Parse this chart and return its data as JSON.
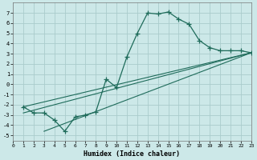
{
  "xlabel": "Humidex (Indice chaleur)",
  "background_color": "#cce8e8",
  "grid_color": "#aacccc",
  "line_color": "#1e6b5a",
  "xlim": [
    0,
    23
  ],
  "ylim": [
    -5.5,
    8.0
  ],
  "xticks": [
    0,
    1,
    2,
    3,
    4,
    5,
    6,
    7,
    8,
    9,
    10,
    11,
    12,
    13,
    14,
    15,
    16,
    17,
    18,
    19,
    20,
    21,
    22,
    23
  ],
  "yticks": [
    -5,
    -4,
    -3,
    -2,
    -1,
    0,
    1,
    2,
    3,
    4,
    5,
    6,
    7
  ],
  "curve1_x": [
    1,
    2,
    3,
    4,
    5,
    6,
    7,
    8,
    9,
    10,
    11,
    12,
    13,
    14,
    15,
    16,
    17,
    18,
    19,
    20,
    21,
    22,
    23
  ],
  "curve1_y": [
    -2.2,
    -2.8,
    -2.8,
    -3.5,
    -4.6,
    -3.2,
    -3.0,
    -2.7,
    0.5,
    -0.3,
    2.7,
    5.0,
    7.0,
    6.9,
    7.1,
    6.4,
    5.9,
    4.3,
    3.6,
    3.3,
    3.3,
    3.3,
    3.1
  ],
  "line2_x": [
    1,
    23
  ],
  "line2_y": [
    -2.2,
    3.1
  ],
  "line3_x": [
    3,
    23
  ],
  "line3_y": [
    -4.6,
    3.1
  ],
  "line4_x": [
    1,
    23
  ],
  "line4_y": [
    -2.8,
    3.1
  ]
}
